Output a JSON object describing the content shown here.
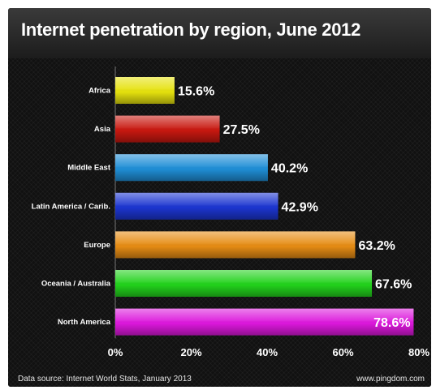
{
  "title": "Internet penetration by region, June 2012",
  "footer": {
    "source": "Data source: Internet World Stats, January 2013",
    "site": "www.pingdom.com"
  },
  "chart_data": {
    "type": "bar",
    "orientation": "horizontal",
    "title": "Internet penetration by region, June 2012",
    "categories": [
      "Africa",
      "Asia",
      "Middle East",
      "Latin America / Carib.",
      "Europe",
      "Oceania / Australia",
      "North America"
    ],
    "values": [
      15.6,
      27.5,
      40.2,
      42.9,
      63.2,
      67.6,
      78.6
    ],
    "value_labels": [
      "15.6%",
      "27.5%",
      "40.2%",
      "42.9%",
      "63.2%",
      "67.6%",
      "78.6%"
    ],
    "bar_colors": [
      "#e6e20e",
      "#c81810",
      "#1f8ed6",
      "#1c35d0",
      "#e68c14",
      "#22d21c",
      "#dc18dc"
    ],
    "xlim": [
      0,
      80
    ],
    "xticks": [
      0,
      20,
      40,
      60,
      80
    ],
    "xtick_labels": [
      "0%",
      "20%",
      "40%",
      "60%",
      "80%"
    ],
    "xlabel": "",
    "ylabel": "",
    "grid": false,
    "legend": "none"
  }
}
